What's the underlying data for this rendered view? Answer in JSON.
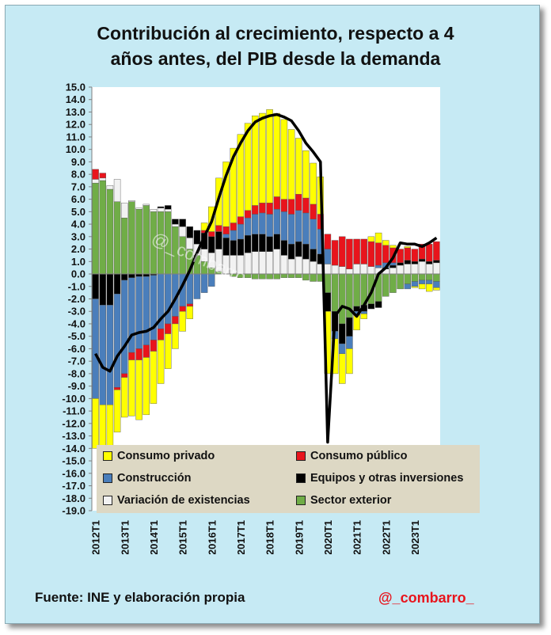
{
  "chart_data": {
    "type": "bar",
    "stacked": true,
    "title_lines": [
      "Contribución al crecimiento, respecto a 4",
      "años antes, del PIB desde la demanda"
    ],
    "title": "Contribución al crecimiento, respecto a 4 años antes, del PIB desde la demanda",
    "ylim": [
      -19,
      15
    ],
    "y_step": 1,
    "y_tick_labels": [
      "15.0",
      "14.0",
      "13.0",
      "12.0",
      "11.0",
      "10.0",
      "9.0",
      "8.0",
      "7.0",
      "6.0",
      "5.0",
      "4.0",
      "3.0",
      "2.0",
      "1.0",
      "0.0",
      "-1.0",
      "-2.0",
      "-3.0",
      "-4.0",
      "-5.0",
      "-6.0",
      "-7.0",
      "-8.0",
      "-9.0",
      "-10.0",
      "-11.0",
      "-12.0",
      "-13.0",
      "-14.0",
      "-15.0",
      "-16.0",
      "-17.0",
      "-18.0",
      "-19.0"
    ],
    "x_tick_labels": [
      "2012T1",
      "2013T1",
      "2014T1",
      "2015T1",
      "2016T1",
      "2017T1",
      "2018T1",
      "2019T1",
      "2020T1",
      "2021T1",
      "2022T1",
      "2023T1"
    ],
    "categories": [
      "2012T1",
      "2012T2",
      "2012T3",
      "2012T4",
      "2013T1",
      "2013T2",
      "2013T3",
      "2013T4",
      "2014T1",
      "2014T2",
      "2014T3",
      "2014T4",
      "2015T1",
      "2015T2",
      "2015T3",
      "2015T4",
      "2016T1",
      "2016T2",
      "2016T3",
      "2016T4",
      "2017T1",
      "2017T2",
      "2017T3",
      "2017T4",
      "2018T1",
      "2018T2",
      "2018T3",
      "2018T4",
      "2019T1",
      "2019T2",
      "2019T3",
      "2019T4",
      "2020T1",
      "2020T2",
      "2020T3",
      "2020T4",
      "2021T1",
      "2021T2",
      "2021T3",
      "2021T4",
      "2022T1",
      "2022T2",
      "2022T3",
      "2022T4",
      "2023T1",
      "2023T2",
      "2023T3",
      "2023T4"
    ],
    "series": [
      {
        "name": "Sector exterior",
        "color": "#70ad47",
        "values": [
          7.3,
          7.5,
          6.8,
          5.8,
          4.5,
          5.8,
          5.2,
          5.5,
          5.0,
          5.0,
          5.0,
          3.8,
          3.0,
          2.0,
          1.5,
          1.0,
          0.5,
          0.2,
          0.0,
          -0.2,
          -0.3,
          -0.3,
          -0.4,
          -0.4,
          -0.4,
          -0.4,
          -0.3,
          -0.3,
          -0.3,
          -0.5,
          -0.6,
          -0.6,
          -1.5,
          -3.0,
          -4.0,
          -3.5,
          -2.6,
          -2.5,
          -2.4,
          -2.2,
          -1.8,
          -1.5,
          -1.2,
          -0.8,
          -0.6,
          -0.5,
          -0.5,
          -0.6
        ]
      },
      {
        "name": "Variación de existencias",
        "color": "#f2f2f2",
        "values": [
          0.3,
          0.2,
          0.3,
          1.8,
          1.2,
          0.1,
          0.1,
          0.1,
          0.2,
          0.3,
          0.2,
          0.2,
          0.8,
          0.9,
          0.9,
          1.0,
          1.2,
          1.8,
          1.5,
          1.5,
          1.5,
          1.7,
          1.8,
          1.8,
          1.8,
          2.0,
          1.5,
          1.2,
          1.4,
          1.2,
          1.0,
          0.8,
          0.8,
          0.7,
          0.6,
          0.4,
          0.8,
          0.8,
          0.6,
          0.5,
          0.4,
          0.5,
          0.7,
          0.8,
          0.8,
          1.0,
          0.8,
          0.9
        ]
      },
      {
        "name": "Equipos y otras inversiones",
        "color": "#000000",
        "values": [
          -2.0,
          -2.5,
          -2.5,
          -1.6,
          -0.5,
          -0.3,
          -0.2,
          -0.2,
          -0.1,
          0.1,
          0.3,
          0.4,
          0.6,
          0.9,
          1.1,
          1.3,
          1.3,
          1.4,
          1.4,
          1.2,
          1.3,
          1.4,
          1.4,
          1.4,
          1.2,
          1.2,
          1.2,
          1.2,
          1.2,
          1.2,
          1.0,
          0.8,
          -1.5,
          -1.6,
          -1.6,
          -1.5,
          -0.4,
          -0.5,
          -0.4,
          -0.5,
          0.1,
          0.2,
          0.2,
          0.3,
          0.2,
          0.2,
          0.2,
          0.2
        ]
      },
      {
        "name": "Construcción",
        "color": "#4a7ebb",
        "values": [
          -8.0,
          -8.0,
          -8.0,
          -7.5,
          -7.5,
          -6.0,
          -5.8,
          -5.5,
          -5.2,
          -4.4,
          -4.0,
          -3.4,
          -2.6,
          -2.4,
          -2.0,
          -1.5,
          -1.0,
          0.0,
          0.3,
          0.8,
          1.2,
          1.4,
          1.6,
          1.7,
          1.8,
          2.0,
          2.3,
          2.4,
          2.5,
          2.5,
          2.4,
          2.0,
          1.2,
          -0.6,
          -0.8,
          -1.0,
          -0.3,
          -0.2,
          0.0,
          0.2,
          0.4,
          0.2,
          0.0,
          -0.4,
          -0.4,
          -0.3,
          -0.3,
          -0.5
        ]
      },
      {
        "name": "Consumo público",
        "color": "#e8141c",
        "values": [
          0.8,
          0.4,
          0.0,
          -0.2,
          -0.3,
          -0.6,
          -0.9,
          -1.0,
          -0.9,
          -0.9,
          -0.8,
          -0.6,
          -0.4,
          -0.2,
          0.0,
          0.2,
          0.4,
          0.5,
          0.6,
          0.6,
          0.6,
          0.6,
          0.7,
          0.8,
          0.9,
          1.0,
          1.0,
          1.2,
          1.3,
          1.2,
          1.2,
          1.2,
          1.2,
          2.0,
          2.4,
          2.4,
          2.0,
          2.0,
          2.0,
          1.8,
          1.4,
          1.2,
          1.1,
          1.0,
          1.0,
          1.2,
          1.4,
          1.5
        ]
      },
      {
        "name": "Consumo privado",
        "color": "#ffff00",
        "values": [
          -4.0,
          -4.0,
          -4.2,
          -3.4,
          -3.2,
          -4.5,
          -4.8,
          -4.6,
          -4.2,
          -3.5,
          -2.8,
          -2.0,
          -1.6,
          -1.0,
          0.0,
          0.6,
          2.0,
          3.8,
          5.2,
          6.0,
          6.6,
          7.0,
          7.2,
          7.2,
          7.5,
          6.7,
          6.4,
          5.6,
          4.5,
          3.8,
          3.3,
          3.0,
          -5.0,
          -2.8,
          -2.4,
          -2.0,
          -1.2,
          -0.4,
          0.4,
          0.8,
          0.4,
          0.2,
          0.0,
          0.1,
          -0.1,
          -0.4,
          -0.6,
          -0.2
        ]
      }
    ],
    "line": {
      "name": "PIB",
      "color": "#000000",
      "values": [
        -6.4,
        -7.5,
        -7.8,
        -6.6,
        -5.8,
        -4.9,
        -4.7,
        -4.6,
        -4.3,
        -3.6,
        -3.0,
        -2.0,
        -0.9,
        0.3,
        1.7,
        3.0,
        4.2,
        6.1,
        7.9,
        9.4,
        10.5,
        11.5,
        12.2,
        12.5,
        12.7,
        12.8,
        12.6,
        12.3,
        11.5,
        10.5,
        9.8,
        9.0,
        -13.5,
        -3.4,
        -2.6,
        -2.8,
        -3.4,
        -2.5,
        -1.5,
        0.0,
        0.5,
        1.3,
        2.5,
        2.4,
        2.4,
        2.2,
        2.5,
        2.9
      ]
    },
    "legend_position": "bottom",
    "grid": false
  },
  "footer": {
    "source": "Fuente: INE y elaboración propia",
    "handle": "@_combarro_"
  },
  "watermark": "@_combarro_"
}
